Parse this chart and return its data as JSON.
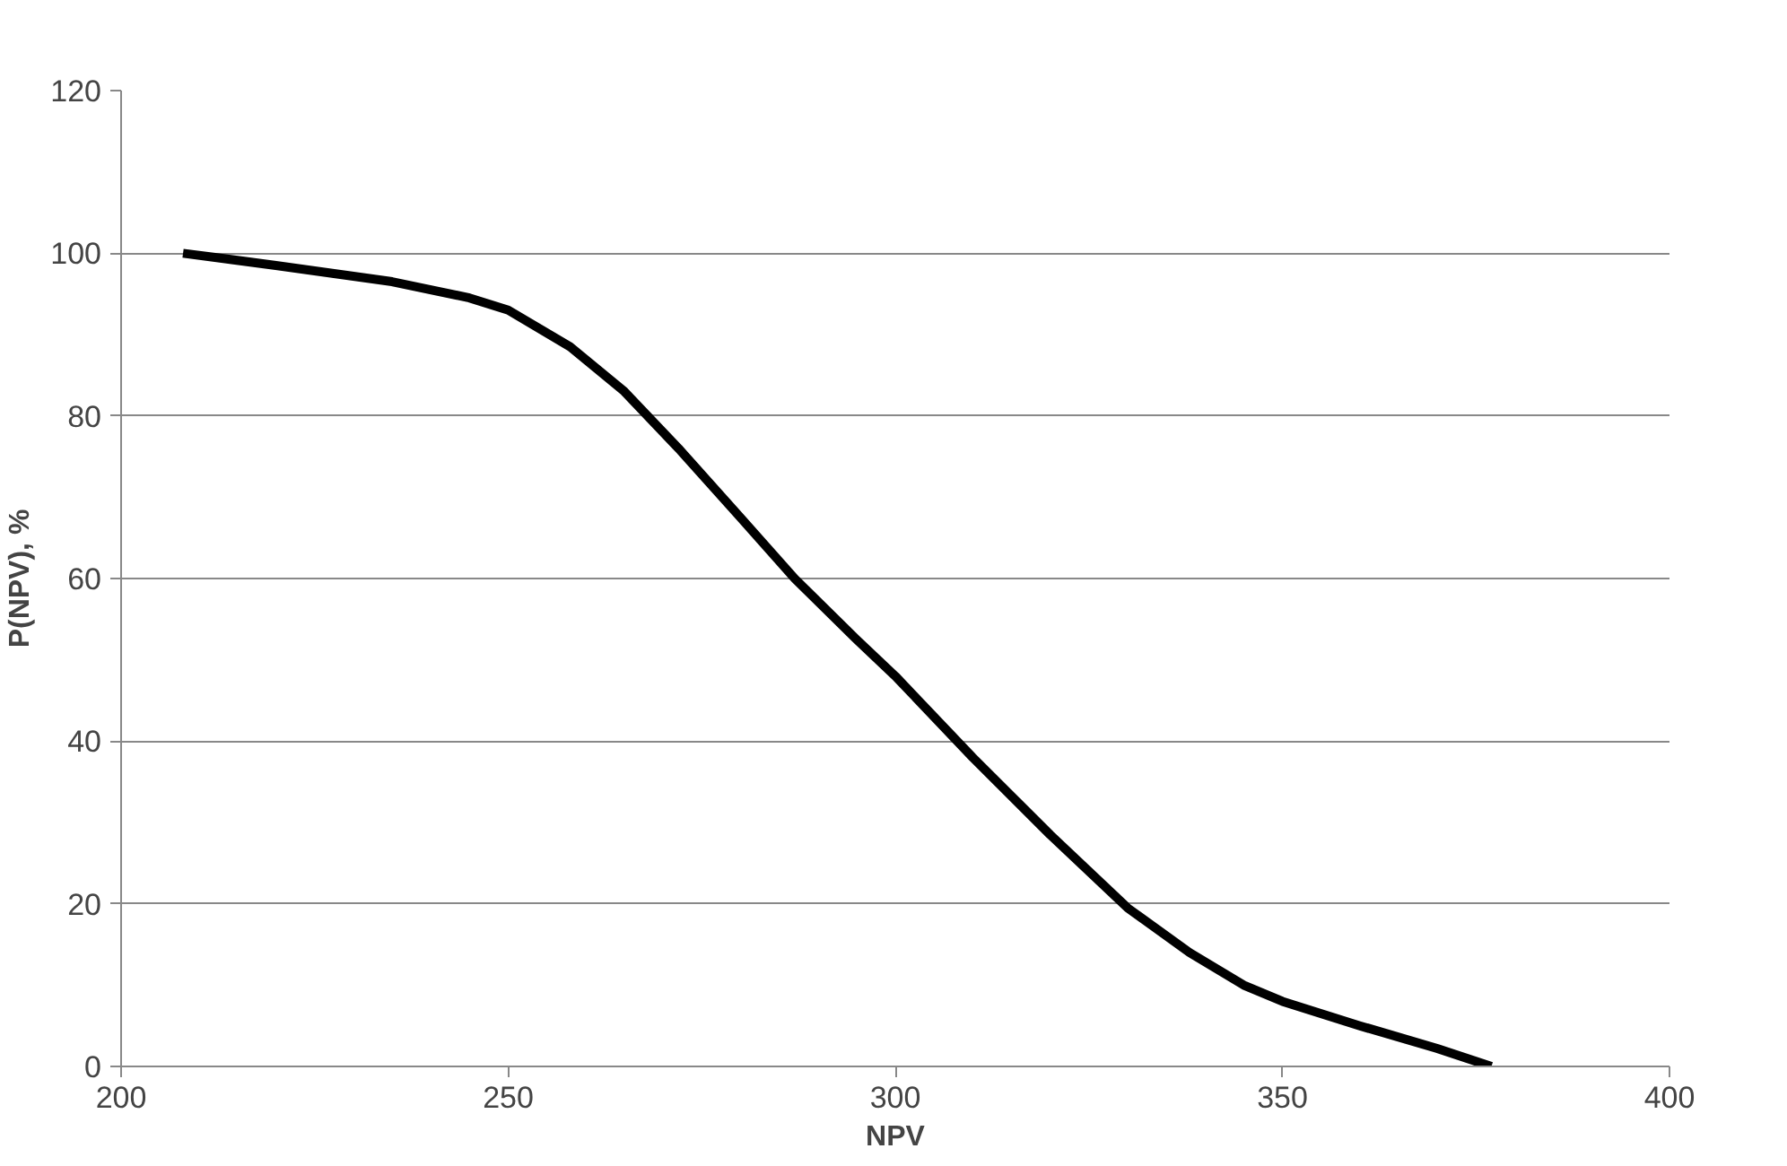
{
  "chart_data": {
    "type": "line",
    "xlabel": "NPV",
    "ylabel": "P(NPV), %",
    "xlim": [
      200,
      400
    ],
    "xticks": [
      200,
      250,
      300,
      350,
      400
    ],
    "ylim": [
      0,
      120
    ],
    "yticks": [
      0,
      20,
      40,
      60,
      80,
      100,
      120
    ],
    "grid": "y",
    "marker": "none",
    "line_style": "solid",
    "series": [
      {
        "color": "#000000",
        "x": [
          208,
          220,
          235,
          245,
          250,
          258,
          265,
          272,
          280,
          287,
          295,
          300,
          310,
          320,
          330,
          338,
          345,
          350,
          360,
          370,
          377
        ],
        "values": [
          100,
          98.5,
          96.5,
          94.5,
          93,
          88.5,
          83,
          76,
          67.5,
          60,
          52.5,
          48,
          38,
          28.5,
          19.5,
          14,
          10,
          8,
          5,
          2.2,
          0
        ]
      }
    ]
  }
}
